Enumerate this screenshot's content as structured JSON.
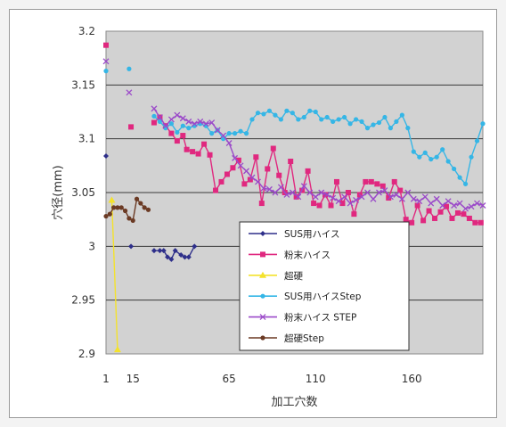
{
  "chart_data": {
    "type": "line",
    "xlabel": "加工穴数",
    "ylabel": "穴径(mm)",
    "x_ticks": [
      "1",
      "15",
      "65",
      "110",
      "160"
    ],
    "ylim": [
      2.9,
      3.2
    ],
    "y_ticks": [
      "3.2",
      "3.15",
      "3.1",
      "3.05",
      "3",
      "2.95",
      "2.9"
    ],
    "grid": "horizontal",
    "legend_position": "lower-right-inside",
    "series": [
      {
        "name": "SUS用ハイス",
        "color": "#2e2f8a",
        "marker": "diamond",
        "points": [
          [
            1,
            3.084
          ],
          [
            14,
            3.0
          ],
          [
            26,
            2.996
          ],
          [
            29,
            2.996
          ],
          [
            31,
            2.996
          ],
          [
            33,
            2.99
          ],
          [
            35,
            2.988
          ],
          [
            37,
            2.996
          ],
          [
            40,
            2.992
          ],
          [
            42,
            2.99
          ],
          [
            44,
            2.99
          ],
          [
            47,
            3.0
          ]
        ]
      },
      {
        "name": "粉末ハイス",
        "color": "#e0287f",
        "marker": "square",
        "points": [
          [
            1,
            3.187
          ],
          [
            14,
            3.111
          ],
          [
            26,
            3.115
          ],
          [
            29,
            3.12
          ],
          [
            32,
            3.112
          ],
          [
            35,
            3.105
          ],
          [
            38,
            3.098
          ],
          [
            41,
            3.103
          ],
          [
            43,
            3.09
          ],
          [
            46,
            3.088
          ],
          [
            49,
            3.086
          ],
          [
            52,
            3.095
          ],
          [
            55,
            3.085
          ],
          [
            58,
            3.052
          ],
          [
            61,
            3.06
          ],
          [
            64,
            3.067
          ],
          [
            67,
            3.073
          ],
          [
            70,
            3.08
          ],
          [
            73,
            3.058
          ],
          [
            76,
            3.062
          ],
          [
            79,
            3.083
          ],
          [
            82,
            3.04
          ],
          [
            85,
            3.072
          ],
          [
            88,
            3.091
          ],
          [
            91,
            3.066
          ],
          [
            94,
            3.05
          ],
          [
            97,
            3.079
          ],
          [
            100,
            3.046
          ],
          [
            103,
            3.052
          ],
          [
            106,
            3.07
          ],
          [
            109,
            3.04
          ],
          [
            112,
            3.038
          ],
          [
            115,
            3.048
          ],
          [
            118,
            3.038
          ],
          [
            121,
            3.06
          ],
          [
            124,
            3.04
          ],
          [
            127,
            3.05
          ],
          [
            130,
            3.03
          ],
          [
            133,
            3.048
          ],
          [
            136,
            3.06
          ],
          [
            139,
            3.06
          ],
          [
            142,
            3.058
          ],
          [
            145,
            3.056
          ],
          [
            148,
            3.045
          ],
          [
            151,
            3.06
          ],
          [
            154,
            3.052
          ],
          [
            157,
            3.025
          ],
          [
            160,
            3.022
          ],
          [
            163,
            3.038
          ],
          [
            166,
            3.024
          ],
          [
            169,
            3.033
          ],
          [
            172,
            3.026
          ],
          [
            175,
            3.032
          ],
          [
            178,
            3.037
          ],
          [
            181,
            3.026
          ],
          [
            184,
            3.031
          ],
          [
            187,
            3.03
          ],
          [
            190,
            3.026
          ],
          [
            193,
            3.022
          ],
          [
            196,
            3.022
          ]
        ]
      },
      {
        "name": "超硬",
        "color": "#f4e22c",
        "marker": "triangle",
        "points": [
          [
            4,
            3.043
          ],
          [
            7,
            2.904
          ]
        ]
      },
      {
        "name": "SUS用ハイスStep",
        "color": "#35b6e6",
        "marker": "circle",
        "points": [
          [
            1,
            3.163
          ],
          [
            13,
            3.165
          ],
          [
            26,
            3.121
          ],
          [
            29,
            3.116
          ],
          [
            32,
            3.11
          ],
          [
            35,
            3.114
          ],
          [
            38,
            3.106
          ],
          [
            41,
            3.112
          ],
          [
            44,
            3.11
          ],
          [
            47,
            3.112
          ],
          [
            50,
            3.114
          ],
          [
            53,
            3.112
          ],
          [
            56,
            3.105
          ],
          [
            59,
            3.108
          ],
          [
            62,
            3.1
          ],
          [
            65,
            3.105
          ],
          [
            68,
            3.105
          ],
          [
            71,
            3.107
          ],
          [
            74,
            3.105
          ],
          [
            77,
            3.118
          ],
          [
            80,
            3.124
          ],
          [
            83,
            3.123
          ],
          [
            86,
            3.126
          ],
          [
            89,
            3.122
          ],
          [
            92,
            3.118
          ],
          [
            95,
            3.126
          ],
          [
            98,
            3.124
          ],
          [
            101,
            3.118
          ],
          [
            104,
            3.12
          ],
          [
            107,
            3.126
          ],
          [
            110,
            3.125
          ],
          [
            113,
            3.118
          ],
          [
            116,
            3.12
          ],
          [
            119,
            3.116
          ],
          [
            122,
            3.118
          ],
          [
            125,
            3.12
          ],
          [
            128,
            3.114
          ],
          [
            131,
            3.118
          ],
          [
            134,
            3.116
          ],
          [
            137,
            3.11
          ],
          [
            140,
            3.113
          ],
          [
            143,
            3.115
          ],
          [
            146,
            3.12
          ],
          [
            149,
            3.11
          ],
          [
            152,
            3.116
          ],
          [
            155,
            3.122
          ],
          [
            158,
            3.11
          ],
          [
            161,
            3.088
          ],
          [
            164,
            3.083
          ],
          [
            167,
            3.087
          ],
          [
            170,
            3.081
          ],
          [
            173,
            3.083
          ],
          [
            176,
            3.09
          ],
          [
            179,
            3.079
          ],
          [
            182,
            3.072
          ],
          [
            185,
            3.064
          ],
          [
            188,
            3.058
          ],
          [
            191,
            3.083
          ],
          [
            194,
            3.098
          ],
          [
            197,
            3.114
          ]
        ]
      },
      {
        "name": "粉末ハイス STEP",
        "color": "#9b4ac9",
        "marker": "x",
        "points": [
          [
            1,
            3.172
          ],
          [
            13,
            3.143
          ],
          [
            26,
            3.128
          ],
          [
            29,
            3.12
          ],
          [
            32,
            3.112
          ],
          [
            35,
            3.118
          ],
          [
            38,
            3.122
          ],
          [
            41,
            3.119
          ],
          [
            44,
            3.116
          ],
          [
            47,
            3.114
          ],
          [
            50,
            3.116
          ],
          [
            53,
            3.114
          ],
          [
            56,
            3.115
          ],
          [
            59,
            3.108
          ],
          [
            62,
            3.103
          ],
          [
            65,
            3.096
          ],
          [
            68,
            3.082
          ],
          [
            71,
            3.075
          ],
          [
            74,
            3.07
          ],
          [
            77,
            3.064
          ],
          [
            80,
            3.06
          ],
          [
            83,
            3.054
          ],
          [
            86,
            3.053
          ],
          [
            89,
            3.05
          ],
          [
            92,
            3.055
          ],
          [
            95,
            3.048
          ],
          [
            98,
            3.05
          ],
          [
            101,
            3.046
          ],
          [
            104,
            3.056
          ],
          [
            107,
            3.05
          ],
          [
            110,
            3.046
          ],
          [
            113,
            3.05
          ],
          [
            116,
            3.048
          ],
          [
            119,
            3.045
          ],
          [
            122,
            3.042
          ],
          [
            125,
            3.046
          ],
          [
            128,
            3.04
          ],
          [
            131,
            3.043
          ],
          [
            134,
            3.046
          ],
          [
            137,
            3.05
          ],
          [
            140,
            3.044
          ],
          [
            143,
            3.05
          ],
          [
            146,
            3.052
          ],
          [
            149,
            3.046
          ],
          [
            152,
            3.048
          ],
          [
            155,
            3.044
          ],
          [
            158,
            3.05
          ],
          [
            161,
            3.044
          ],
          [
            164,
            3.042
          ],
          [
            167,
            3.046
          ],
          [
            170,
            3.04
          ],
          [
            173,
            3.044
          ],
          [
            176,
            3.038
          ],
          [
            179,
            3.042
          ],
          [
            182,
            3.038
          ],
          [
            185,
            3.04
          ],
          [
            188,
            3.035
          ],
          [
            191,
            3.037
          ],
          [
            194,
            3.04
          ],
          [
            197,
            3.038
          ]
        ]
      },
      {
        "name": "超硬Step",
        "color": "#6b3a24",
        "marker": "circle",
        "points": [
          [
            1,
            3.028
          ],
          [
            3,
            3.03
          ],
          [
            5,
            3.036
          ],
          [
            7,
            3.036
          ],
          [
            9,
            3.036
          ],
          [
            11,
            3.033
          ],
          [
            13,
            3.026
          ],
          [
            15,
            3.024
          ],
          [
            17,
            3.044
          ],
          [
            19,
            3.04
          ],
          [
            21,
            3.036
          ],
          [
            23,
            3.034
          ]
        ]
      }
    ]
  }
}
